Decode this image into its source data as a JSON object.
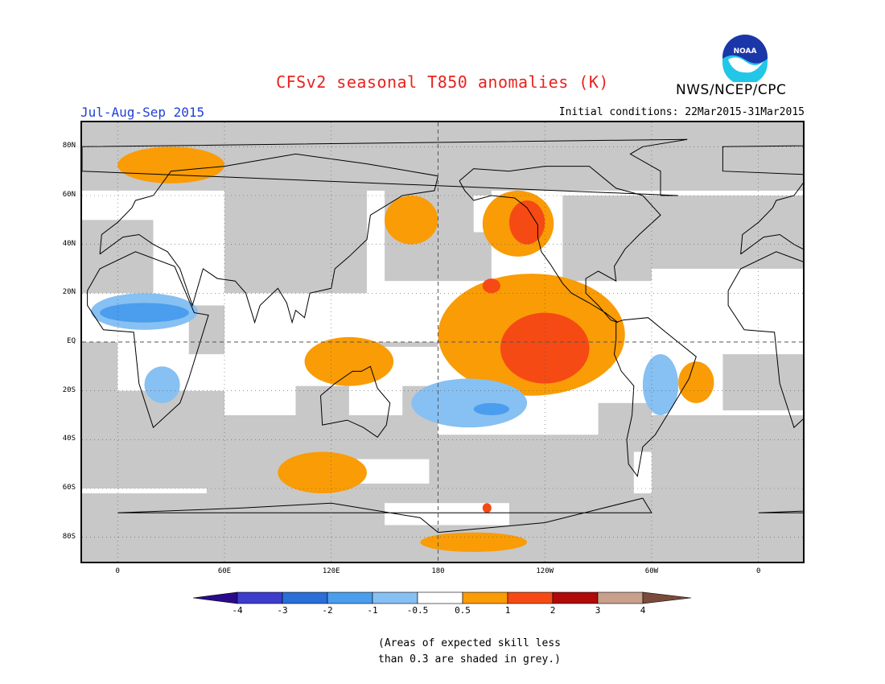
{
  "header": {
    "title": "CFSv2 seasonal T850 anomalies (K)",
    "agency": "NWS/NCEP/CPC",
    "logo_text": "NOAA",
    "season": "Jul-Aug-Sep 2015",
    "initial_conditions": "Initial conditions: 22Mar2015-31Mar2015"
  },
  "map": {
    "lat_labels": [
      "80N",
      "60N",
      "40N",
      "20N",
      "EQ",
      "20S",
      "40S",
      "60S",
      "80S"
    ],
    "lat_values": [
      80,
      60,
      40,
      20,
      0,
      -20,
      -40,
      -60,
      -80
    ],
    "lon_labels": [
      "0",
      "60E",
      "120E",
      "180",
      "120W",
      "60W",
      "0"
    ],
    "lon_values": [
      0,
      60,
      120,
      180,
      240,
      300,
      360
    ],
    "lon_range": [
      -20,
      385
    ],
    "lat_range": [
      -90,
      90
    ],
    "grey_color": "#c8c8c8",
    "positive_regions": [
      {
        "name": "arctic-n-europe",
        "level": 0.5,
        "lon": [
          0,
          60
        ],
        "lat": [
          65,
          80
        ]
      },
      {
        "name": "n-pacific-west",
        "level": 0.5,
        "lon": [
          150,
          180
        ],
        "lat": [
          40,
          60
        ]
      },
      {
        "name": "n-pacific-east",
        "level": 0.5,
        "lon": [
          205,
          245
        ],
        "lat": [
          35,
          62
        ]
      },
      {
        "name": "alaska-coast",
        "level": 1,
        "lon": [
          220,
          240
        ],
        "lat": [
          40,
          58
        ]
      },
      {
        "name": "tropical-pacific",
        "level": 0.5,
        "lon": [
          180,
          285
        ],
        "lat": [
          -22,
          28
        ]
      },
      {
        "name": "nino-core",
        "level": 1,
        "lon": [
          215,
          265
        ],
        "lat": [
          -17,
          12
        ]
      },
      {
        "name": "hawaii-patch",
        "level": 1,
        "lon": [
          205,
          215
        ],
        "lat": [
          20,
          26
        ]
      },
      {
        "name": "indonesia",
        "level": 0.5,
        "lon": [
          105,
          155
        ],
        "lat": [
          -18,
          2
        ]
      },
      {
        "name": "brazil-east",
        "level": 0.5,
        "lon": [
          315,
          335
        ],
        "lat": [
          -25,
          -8
        ]
      },
      {
        "name": "southern-ocean",
        "level": 0.5,
        "lon": [
          90,
          140
        ],
        "lat": [
          -62,
          -45
        ]
      },
      {
        "name": "antarctic-pacific",
        "level": 1,
        "lon": [
          205,
          210
        ],
        "lat": [
          -70,
          -66
        ]
      },
      {
        "name": "antarctic-coast",
        "level": 0.5,
        "lon": [
          170,
          230
        ],
        "lat": [
          -86,
          -78
        ]
      }
    ],
    "negative_regions": [
      {
        "name": "sahel",
        "level": -0.5,
        "lon": [
          -15,
          45
        ],
        "lat": [
          5,
          20
        ]
      },
      {
        "name": "s-africa",
        "level": -0.5,
        "lon": [
          15,
          35
        ],
        "lat": [
          -25,
          -10
        ]
      },
      {
        "name": "s-pacific-band",
        "level": -0.5,
        "lon": [
          165,
          230
        ],
        "lat": [
          -35,
          -15
        ]
      },
      {
        "name": "s-america",
        "level": -0.5,
        "lon": [
          295,
          315
        ],
        "lat": [
          -30,
          -5
        ]
      }
    ]
  },
  "colorbar": {
    "tick_labels": [
      "-4",
      "-3",
      "-2",
      "-1",
      "-0.5",
      "0.5",
      "1",
      "2",
      "3",
      "4"
    ],
    "colors": [
      "#2a0a8c",
      "#3d3dcc",
      "#2a6fd8",
      "#4b9ded",
      "#87c0f2",
      "#ffffff",
      "#f99c06",
      "#f64a14",
      "#b00a0a",
      "#c8a08c",
      "#7a4a3a"
    ]
  },
  "note": {
    "line1": "(Areas of expected skill less",
    "line2": "than 0.3 are shaded in grey.)"
  }
}
